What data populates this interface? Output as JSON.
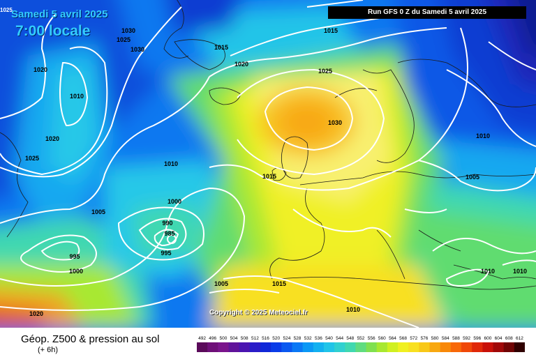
{
  "header": {
    "date": "Samedi 5 avril 2025",
    "time": "7:00 locale",
    "run": "Run GFS 0 Z du Samedi 5 avril 2025",
    "corner_value": "1025"
  },
  "copyright": "Copyright © 2025 Meteociel.fr",
  "footer": {
    "title": "Géop. Z500 & pression au sol",
    "subtitle": "(+ 6h)"
  },
  "legend": {
    "values": [
      "492",
      "496",
      "500",
      "504",
      "508",
      "512",
      "516",
      "520",
      "524",
      "528",
      "532",
      "536",
      "540",
      "544",
      "548",
      "552",
      "556",
      "560",
      "564",
      "568",
      "572",
      "576",
      "580",
      "584",
      "588",
      "592",
      "596",
      "600",
      "604",
      "608",
      "612"
    ],
    "colors": [
      "#5a0a5a",
      "#6e0f78",
      "#7a148c",
      "#60139a",
      "#4a14b0",
      "#2a1cc8",
      "#1028d8",
      "#0a3ce8",
      "#0a58f0",
      "#0a78f5",
      "#0a98f5",
      "#12b0f0",
      "#20c4e8",
      "#30d0d0",
      "#40d8b0",
      "#60dc80",
      "#80e050",
      "#a8e830",
      "#d0f020",
      "#f0f020",
      "#f8e020",
      "#f8c818",
      "#f8a810",
      "#f88808",
      "#f86808",
      "#f04808",
      "#e02808",
      "#c81008",
      "#a00808",
      "#700404",
      "#300000"
    ]
  },
  "map": {
    "colors": {
      "deep_blue": "#0a3cd2",
      "mid_blue": "#0a78f0",
      "light_blue": "#14a8f0",
      "cyan": "#28c8e8",
      "teal": "#40d8b0",
      "green": "#60dc70",
      "lime": "#a8e830",
      "yellow": "#f0f028",
      "pale_yellow": "#f8f070",
      "orange": "#f8b818",
      "dark_orange": "#f08010",
      "red": "#e04010"
    },
    "isobar_labels": [
      "1030",
      "1025",
      "1030",
      "1015",
      "1015",
      "1020",
      "1025",
      "1020",
      "1010",
      "1030",
      "1020",
      "1010",
      "1025",
      "1010",
      "1015",
      "1005",
      "1000",
      "1005",
      "990",
      "985",
      "995",
      "995",
      "1000",
      "1005",
      "1015",
      "1020",
      "1010",
      "1010",
      "1010"
    ]
  }
}
